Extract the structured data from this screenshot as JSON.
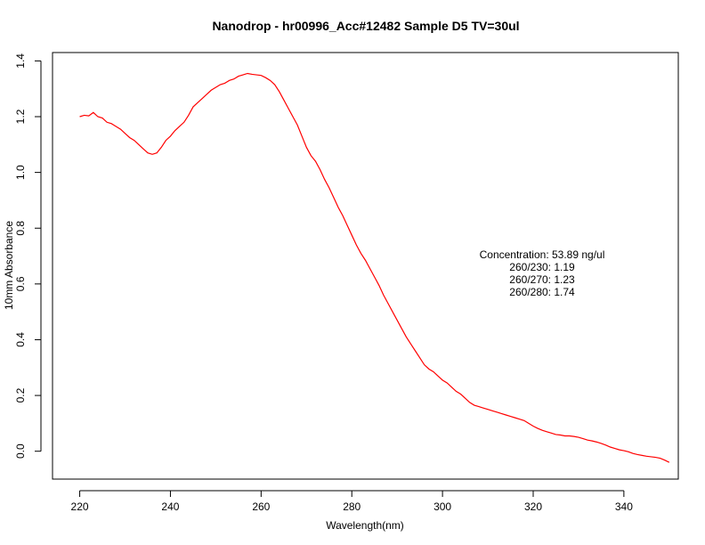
{
  "chart_data": {
    "type": "line",
    "title": "Nanodrop - hr00996_Acc#12482 Sample D5  TV=30ul",
    "xlabel": "Wavelength(nm)",
    "ylabel": "10mm Absorbance",
    "xlim": [
      214,
      352
    ],
    "ylim": [
      -0.1,
      1.43
    ],
    "xticks": [
      220,
      240,
      260,
      280,
      300,
      320,
      340
    ],
    "yticks": [
      0.0,
      0.2,
      0.4,
      0.6,
      0.8,
      1.0,
      1.2,
      1.4
    ],
    "xtick_labels": [
      "220",
      "240",
      "260",
      "280",
      "300",
      "320",
      "340"
    ],
    "ytick_labels": [
      "0.0",
      "0.2",
      "0.4",
      "0.6",
      "0.8",
      "1.0",
      "1.2",
      "1.4"
    ],
    "grid": false,
    "series": [
      {
        "color": "#ff0000",
        "x": [
          220,
          221,
          222,
          223,
          224,
          225,
          226,
          227,
          228,
          229,
          230,
          231,
          232,
          233,
          234,
          235,
          236,
          237,
          238,
          239,
          240,
          241,
          242,
          243,
          244,
          245,
          246,
          247,
          248,
          249,
          250,
          251,
          252,
          253,
          254,
          255,
          256,
          257,
          258,
          259,
          260,
          261,
          262,
          263,
          264,
          265,
          266,
          267,
          268,
          269,
          270,
          271,
          272,
          273,
          274,
          275,
          276,
          277,
          278,
          279,
          280,
          281,
          282,
          283,
          284,
          285,
          286,
          287,
          288,
          289,
          290,
          291,
          292,
          293,
          294,
          295,
          296,
          297,
          298,
          299,
          300,
          301,
          302,
          303,
          304,
          305,
          306,
          307,
          308,
          309,
          310,
          311,
          312,
          313,
          314,
          315,
          316,
          317,
          318,
          319,
          320,
          321,
          322,
          323,
          324,
          325,
          326,
          327,
          328,
          329,
          330,
          331,
          332,
          333,
          334,
          335,
          336,
          337,
          338,
          339,
          340,
          341,
          342,
          343,
          344,
          345,
          346,
          347,
          348,
          349,
          350
        ],
        "y": [
          1.2,
          1.205,
          1.203,
          1.215,
          1.2,
          1.195,
          1.18,
          1.175,
          1.165,
          1.155,
          1.14,
          1.125,
          1.115,
          1.1,
          1.085,
          1.07,
          1.065,
          1.07,
          1.09,
          1.115,
          1.13,
          1.15,
          1.165,
          1.18,
          1.205,
          1.235,
          1.25,
          1.265,
          1.28,
          1.295,
          1.305,
          1.315,
          1.32,
          1.33,
          1.335,
          1.345,
          1.35,
          1.355,
          1.352,
          1.35,
          1.348,
          1.34,
          1.33,
          1.315,
          1.29,
          1.26,
          1.23,
          1.2,
          1.17,
          1.13,
          1.09,
          1.06,
          1.04,
          1.01,
          0.975,
          0.945,
          0.91,
          0.875,
          0.845,
          0.81,
          0.775,
          0.74,
          0.71,
          0.685,
          0.655,
          0.625,
          0.595,
          0.56,
          0.53,
          0.5,
          0.47,
          0.44,
          0.41,
          0.385,
          0.36,
          0.335,
          0.31,
          0.295,
          0.285,
          0.27,
          0.255,
          0.245,
          0.23,
          0.215,
          0.205,
          0.19,
          0.175,
          0.165,
          0.16,
          0.155,
          0.15,
          0.145,
          0.14,
          0.135,
          0.13,
          0.125,
          0.12,
          0.115,
          0.11,
          0.1,
          0.09,
          0.082,
          0.075,
          0.07,
          0.065,
          0.06,
          0.058,
          0.055,
          0.055,
          0.053,
          0.05,
          0.045,
          0.04,
          0.037,
          0.033,
          0.028,
          0.022,
          0.015,
          0.01,
          0.005,
          0.002,
          -0.002,
          -0.008,
          -0.012,
          -0.015,
          -0.018,
          -0.02,
          -0.022,
          -0.025,
          -0.032,
          -0.04
        ]
      }
    ],
    "annotations": [
      "Concentration: 53.89 ng/ul",
      "260/230: 1.19",
      "260/270: 1.23",
      "260/280: 1.74"
    ]
  }
}
